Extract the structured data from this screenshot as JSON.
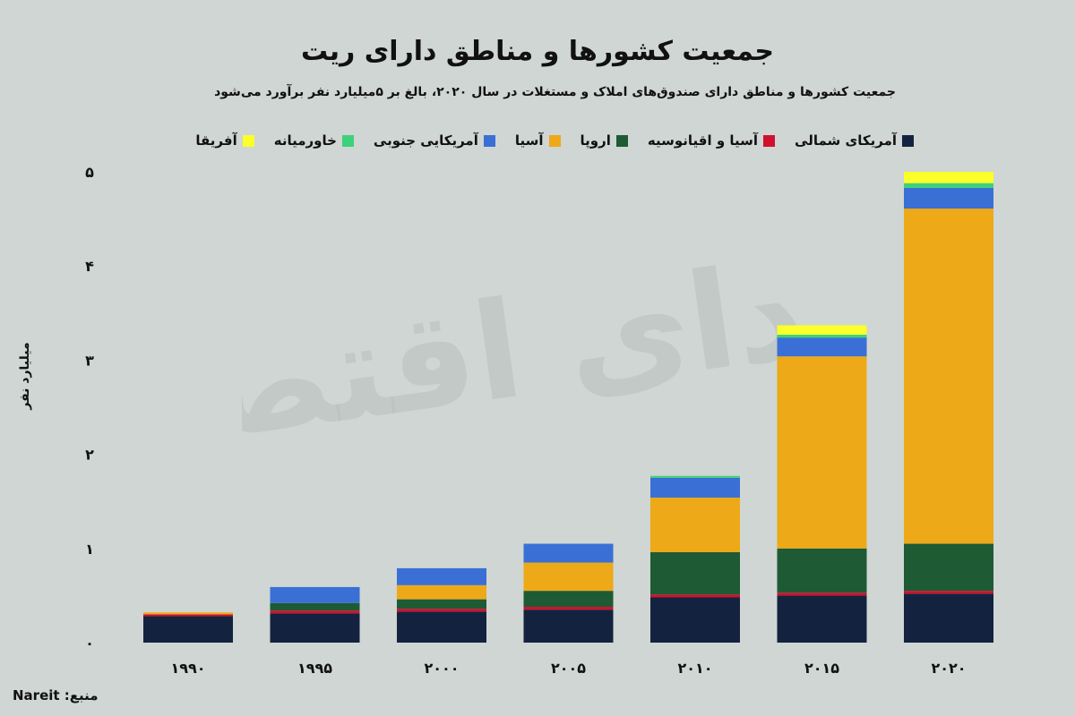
{
  "chart_data": {
    "type": "bar",
    "stacked": true,
    "title": "جمعیت کشورها و مناطق دارای ریت",
    "subtitle": "جمعیت کشورها و مناطق دارای صندوق‌های املاک و مستغلات در سال ۲۰۲۰، بالغ بر ۵میلیارد نفر برآورد می‌شود",
    "ylabel": "میلیارد نفر",
    "xlabel": "",
    "categories": [
      "۱۹۹۰",
      "۱۹۹۵",
      "۲۰۰۰",
      "۲۰۰۵",
      "۲۰۱۰",
      "۲۰۱۵",
      "۲۰۲۰"
    ],
    "y_ticks": [
      "۰",
      "۱",
      "۲",
      "۳",
      "۴",
      "۵"
    ],
    "ylim": [
      0,
      5
    ],
    "grid": false,
    "legend_position": "top",
    "series": [
      {
        "name": "آمریکای شمالی",
        "color": "#13233f",
        "values": [
          0.28,
          0.31,
          0.33,
          0.35,
          0.48,
          0.5,
          0.52
        ]
      },
      {
        "name": "آسیا و اقیانوسیه",
        "color": "#d1102d",
        "values": [
          0.02,
          0.03,
          0.03,
          0.03,
          0.03,
          0.03,
          0.03
        ]
      },
      {
        "name": "اروپا",
        "color": "#1e5a34",
        "values": [
          0.0,
          0.08,
          0.1,
          0.17,
          0.45,
          0.47,
          0.5
        ]
      },
      {
        "name": "آسیا",
        "color": "#eda918",
        "values": [
          0.02,
          0.0,
          0.15,
          0.3,
          0.58,
          2.04,
          3.56
        ]
      },
      {
        "name": "آمریکایی جنوبی",
        "color": "#3a6fd6",
        "values": [
          0.0,
          0.17,
          0.18,
          0.2,
          0.21,
          0.2,
          0.22
        ]
      },
      {
        "name": "خاورمیانه",
        "color": "#3dd17a",
        "values": [
          0.0,
          0.0,
          0.0,
          0.0,
          0.02,
          0.03,
          0.05
        ]
      },
      {
        "name": "آفریقا",
        "color": "#fbff2a",
        "values": [
          0.0,
          0.0,
          0.0,
          0.0,
          0.0,
          0.1,
          0.12
        ]
      }
    ]
  },
  "watermark": "فردای اقتصاد",
  "source": "منبع: Nareit"
}
